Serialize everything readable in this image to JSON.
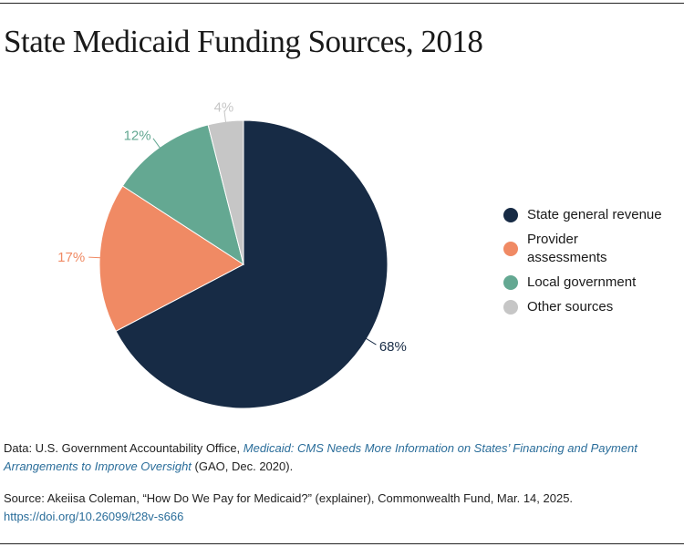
{
  "title": "State Medicaid Funding Sources, 2018",
  "chart_data": {
    "type": "pie",
    "title": "State Medicaid Funding Sources, 2018",
    "categories": [
      "State general revenue",
      "Provider assessments",
      "Local government",
      "Other sources"
    ],
    "values": [
      68,
      17,
      12,
      4
    ],
    "labels": [
      "68%",
      "17%",
      "12%",
      "4%"
    ],
    "colors": [
      "#172b45",
      "#f08a64",
      "#64a892",
      "#c6c6c6"
    ],
    "label_colors": [
      "#172b45",
      "#f08a64",
      "#64a892",
      "#c6c6c6"
    ],
    "legend_position": "right",
    "start": "top",
    "direction": "clockwise"
  },
  "legend": [
    "State general revenue",
    "Provider assessments",
    "Local government",
    "Other sources"
  ],
  "footer": {
    "data_prefix": "Data: U.S. Government Accountability Office, ",
    "data_link": "Medicaid: CMS Needs More Information on States’ Financing and Payment Arrangements to Improve Oversight",
    "data_suffix": " (GAO, Dec. 2020).",
    "source": "Source: Akeiisa Coleman, “How Do We Pay for Medicaid?” (explainer), Commonwealth Fund, Mar. 14, 2025.",
    "doi": "https://doi.org/10.26099/t28v-s666"
  }
}
